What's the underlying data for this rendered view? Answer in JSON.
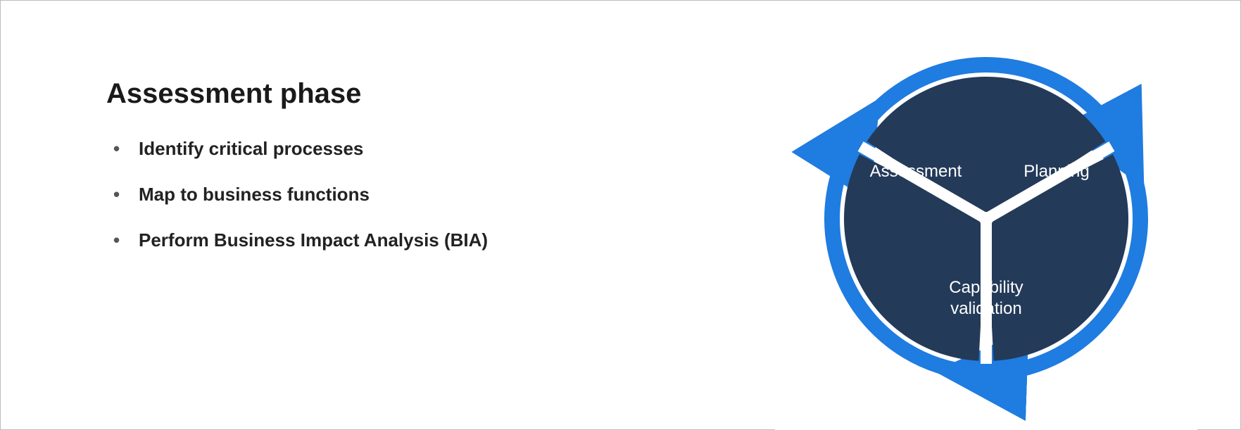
{
  "title": "Assessment phase",
  "bullets": [
    "Identify critical processes",
    "Map to business functions",
    "Perform Business Impact Analysis (BIA)"
  ],
  "text_color": "#1a1a1a",
  "bullet_color": "#555555",
  "title_fontsize": 40,
  "bullet_fontsize": 26,
  "diagram": {
    "type": "cycle",
    "outer_ring_color": "#1f7ce0",
    "segment_fill": "#243a59",
    "segment_label_color": "#ffffff",
    "background": "#ffffff",
    "label_fontsize": 24,
    "segments": [
      {
        "label": "Assessment",
        "start_deg": 210,
        "end_deg": 330
      },
      {
        "label": "Planning",
        "start_deg": -30,
        "end_deg": 90
      },
      {
        "label_line1": "Capability",
        "label_line2": "validation",
        "start_deg": 90,
        "end_deg": 210
      }
    ],
    "gap_deg": 6,
    "radius": 230,
    "ring_width": 22
  }
}
